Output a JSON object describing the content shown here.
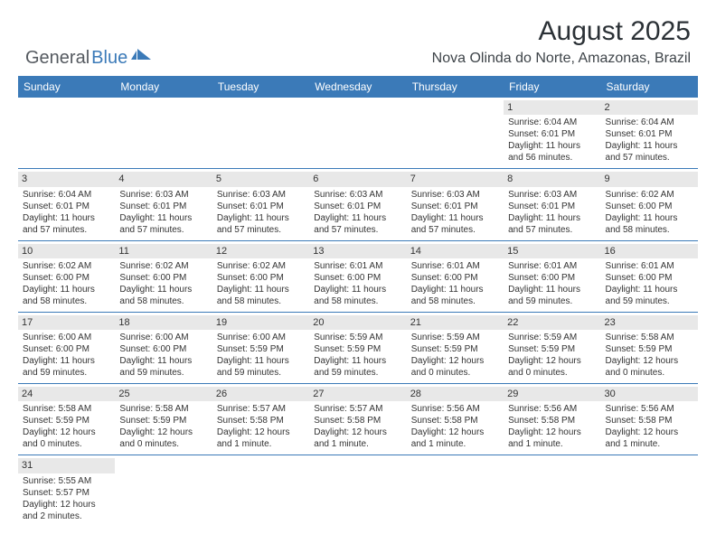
{
  "logo": {
    "text1": "General",
    "text2": "Blue"
  },
  "title": "August 2025",
  "location": "Nova Olinda do Norte, Amazonas, Brazil",
  "colors": {
    "header_bg": "#3b7ab8",
    "header_text": "#ffffff",
    "daynum_bg": "#e8e8e8",
    "border": "#3b7ab8",
    "text": "#333333",
    "title_text": "#2b3136"
  },
  "day_names": [
    "Sunday",
    "Monday",
    "Tuesday",
    "Wednesday",
    "Thursday",
    "Friday",
    "Saturday"
  ],
  "weeks": [
    [
      {
        "empty": true
      },
      {
        "empty": true
      },
      {
        "empty": true
      },
      {
        "empty": true
      },
      {
        "empty": true
      },
      {
        "num": "1",
        "sunrise": "Sunrise: 6:04 AM",
        "sunset": "Sunset: 6:01 PM",
        "daylight1": "Daylight: 11 hours",
        "daylight2": "and 56 minutes."
      },
      {
        "num": "2",
        "sunrise": "Sunrise: 6:04 AM",
        "sunset": "Sunset: 6:01 PM",
        "daylight1": "Daylight: 11 hours",
        "daylight2": "and 57 minutes."
      }
    ],
    [
      {
        "num": "3",
        "sunrise": "Sunrise: 6:04 AM",
        "sunset": "Sunset: 6:01 PM",
        "daylight1": "Daylight: 11 hours",
        "daylight2": "and 57 minutes."
      },
      {
        "num": "4",
        "sunrise": "Sunrise: 6:03 AM",
        "sunset": "Sunset: 6:01 PM",
        "daylight1": "Daylight: 11 hours",
        "daylight2": "and 57 minutes."
      },
      {
        "num": "5",
        "sunrise": "Sunrise: 6:03 AM",
        "sunset": "Sunset: 6:01 PM",
        "daylight1": "Daylight: 11 hours",
        "daylight2": "and 57 minutes."
      },
      {
        "num": "6",
        "sunrise": "Sunrise: 6:03 AM",
        "sunset": "Sunset: 6:01 PM",
        "daylight1": "Daylight: 11 hours",
        "daylight2": "and 57 minutes."
      },
      {
        "num": "7",
        "sunrise": "Sunrise: 6:03 AM",
        "sunset": "Sunset: 6:01 PM",
        "daylight1": "Daylight: 11 hours",
        "daylight2": "and 57 minutes."
      },
      {
        "num": "8",
        "sunrise": "Sunrise: 6:03 AM",
        "sunset": "Sunset: 6:01 PM",
        "daylight1": "Daylight: 11 hours",
        "daylight2": "and 57 minutes."
      },
      {
        "num": "9",
        "sunrise": "Sunrise: 6:02 AM",
        "sunset": "Sunset: 6:00 PM",
        "daylight1": "Daylight: 11 hours",
        "daylight2": "and 58 minutes."
      }
    ],
    [
      {
        "num": "10",
        "sunrise": "Sunrise: 6:02 AM",
        "sunset": "Sunset: 6:00 PM",
        "daylight1": "Daylight: 11 hours",
        "daylight2": "and 58 minutes."
      },
      {
        "num": "11",
        "sunrise": "Sunrise: 6:02 AM",
        "sunset": "Sunset: 6:00 PM",
        "daylight1": "Daylight: 11 hours",
        "daylight2": "and 58 minutes."
      },
      {
        "num": "12",
        "sunrise": "Sunrise: 6:02 AM",
        "sunset": "Sunset: 6:00 PM",
        "daylight1": "Daylight: 11 hours",
        "daylight2": "and 58 minutes."
      },
      {
        "num": "13",
        "sunrise": "Sunrise: 6:01 AM",
        "sunset": "Sunset: 6:00 PM",
        "daylight1": "Daylight: 11 hours",
        "daylight2": "and 58 minutes."
      },
      {
        "num": "14",
        "sunrise": "Sunrise: 6:01 AM",
        "sunset": "Sunset: 6:00 PM",
        "daylight1": "Daylight: 11 hours",
        "daylight2": "and 58 minutes."
      },
      {
        "num": "15",
        "sunrise": "Sunrise: 6:01 AM",
        "sunset": "Sunset: 6:00 PM",
        "daylight1": "Daylight: 11 hours",
        "daylight2": "and 59 minutes."
      },
      {
        "num": "16",
        "sunrise": "Sunrise: 6:01 AM",
        "sunset": "Sunset: 6:00 PM",
        "daylight1": "Daylight: 11 hours",
        "daylight2": "and 59 minutes."
      }
    ],
    [
      {
        "num": "17",
        "sunrise": "Sunrise: 6:00 AM",
        "sunset": "Sunset: 6:00 PM",
        "daylight1": "Daylight: 11 hours",
        "daylight2": "and 59 minutes."
      },
      {
        "num": "18",
        "sunrise": "Sunrise: 6:00 AM",
        "sunset": "Sunset: 6:00 PM",
        "daylight1": "Daylight: 11 hours",
        "daylight2": "and 59 minutes."
      },
      {
        "num": "19",
        "sunrise": "Sunrise: 6:00 AM",
        "sunset": "Sunset: 5:59 PM",
        "daylight1": "Daylight: 11 hours",
        "daylight2": "and 59 minutes."
      },
      {
        "num": "20",
        "sunrise": "Sunrise: 5:59 AM",
        "sunset": "Sunset: 5:59 PM",
        "daylight1": "Daylight: 11 hours",
        "daylight2": "and 59 minutes."
      },
      {
        "num": "21",
        "sunrise": "Sunrise: 5:59 AM",
        "sunset": "Sunset: 5:59 PM",
        "daylight1": "Daylight: 12 hours",
        "daylight2": "and 0 minutes."
      },
      {
        "num": "22",
        "sunrise": "Sunrise: 5:59 AM",
        "sunset": "Sunset: 5:59 PM",
        "daylight1": "Daylight: 12 hours",
        "daylight2": "and 0 minutes."
      },
      {
        "num": "23",
        "sunrise": "Sunrise: 5:58 AM",
        "sunset": "Sunset: 5:59 PM",
        "daylight1": "Daylight: 12 hours",
        "daylight2": "and 0 minutes."
      }
    ],
    [
      {
        "num": "24",
        "sunrise": "Sunrise: 5:58 AM",
        "sunset": "Sunset: 5:59 PM",
        "daylight1": "Daylight: 12 hours",
        "daylight2": "and 0 minutes."
      },
      {
        "num": "25",
        "sunrise": "Sunrise: 5:58 AM",
        "sunset": "Sunset: 5:59 PM",
        "daylight1": "Daylight: 12 hours",
        "daylight2": "and 0 minutes."
      },
      {
        "num": "26",
        "sunrise": "Sunrise: 5:57 AM",
        "sunset": "Sunset: 5:58 PM",
        "daylight1": "Daylight: 12 hours",
        "daylight2": "and 1 minute."
      },
      {
        "num": "27",
        "sunrise": "Sunrise: 5:57 AM",
        "sunset": "Sunset: 5:58 PM",
        "daylight1": "Daylight: 12 hours",
        "daylight2": "and 1 minute."
      },
      {
        "num": "28",
        "sunrise": "Sunrise: 5:56 AM",
        "sunset": "Sunset: 5:58 PM",
        "daylight1": "Daylight: 12 hours",
        "daylight2": "and 1 minute."
      },
      {
        "num": "29",
        "sunrise": "Sunrise: 5:56 AM",
        "sunset": "Sunset: 5:58 PM",
        "daylight1": "Daylight: 12 hours",
        "daylight2": "and 1 minute."
      },
      {
        "num": "30",
        "sunrise": "Sunrise: 5:56 AM",
        "sunset": "Sunset: 5:58 PM",
        "daylight1": "Daylight: 12 hours",
        "daylight2": "and 1 minute."
      }
    ],
    [
      {
        "num": "31",
        "sunrise": "Sunrise: 5:55 AM",
        "sunset": "Sunset: 5:57 PM",
        "daylight1": "Daylight: 12 hours",
        "daylight2": "and 2 minutes."
      },
      {
        "empty": true
      },
      {
        "empty": true
      },
      {
        "empty": true
      },
      {
        "empty": true
      },
      {
        "empty": true
      },
      {
        "empty": true
      }
    ]
  ]
}
